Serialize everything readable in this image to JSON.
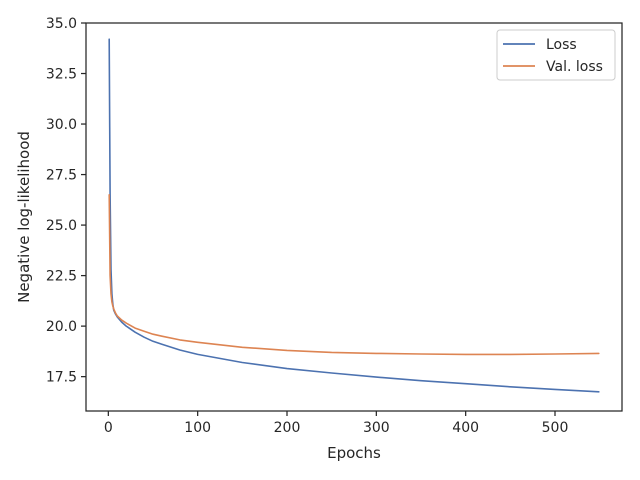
{
  "chart_data": {
    "type": "line",
    "title": "",
    "xlabel": "Epochs",
    "ylabel": "Negative log-likelihood",
    "xlim": [
      -25,
      575
    ],
    "ylim": [
      15.8,
      35.0
    ],
    "xticks": [
      0,
      100,
      200,
      300,
      400,
      500
    ],
    "yticks": [
      17.5,
      20.0,
      22.5,
      25.0,
      27.5,
      30.0,
      32.5,
      35.0
    ],
    "xtick_labels": [
      "0",
      "100",
      "200",
      "300",
      "400",
      "500"
    ],
    "ytick_labels": [
      "17.5",
      "20.0",
      "22.5",
      "25.0",
      "27.5",
      "30.0",
      "32.5",
      "35.0"
    ],
    "grid": false,
    "legend_position": "top-right",
    "series": [
      {
        "name": "Loss",
        "color": "#4c72b0",
        "x": [
          1,
          2,
          3,
          4,
          5,
          6,
          8,
          10,
          15,
          20,
          30,
          40,
          50,
          60,
          80,
          100,
          150,
          200,
          250,
          300,
          350,
          400,
          450,
          500,
          549
        ],
        "y": [
          34.2,
          26.5,
          22.8,
          21.6,
          21.1,
          20.8,
          20.6,
          20.45,
          20.2,
          20.0,
          19.7,
          19.45,
          19.25,
          19.1,
          18.82,
          18.6,
          18.2,
          17.9,
          17.68,
          17.48,
          17.3,
          17.15,
          17.0,
          16.87,
          16.75
        ]
      },
      {
        "name": "Val. loss",
        "color": "#dd8452",
        "x": [
          1,
          2,
          3,
          4,
          5,
          6,
          8,
          10,
          15,
          20,
          30,
          40,
          50,
          60,
          80,
          100,
          150,
          200,
          250,
          300,
          350,
          400,
          450,
          500,
          549
        ],
        "y": [
          26.5,
          22.5,
          21.6,
          21.2,
          21.0,
          20.85,
          20.65,
          20.5,
          20.3,
          20.15,
          19.9,
          19.75,
          19.6,
          19.5,
          19.32,
          19.2,
          18.95,
          18.8,
          18.7,
          18.65,
          18.62,
          18.6,
          18.6,
          18.62,
          18.65
        ]
      }
    ]
  }
}
